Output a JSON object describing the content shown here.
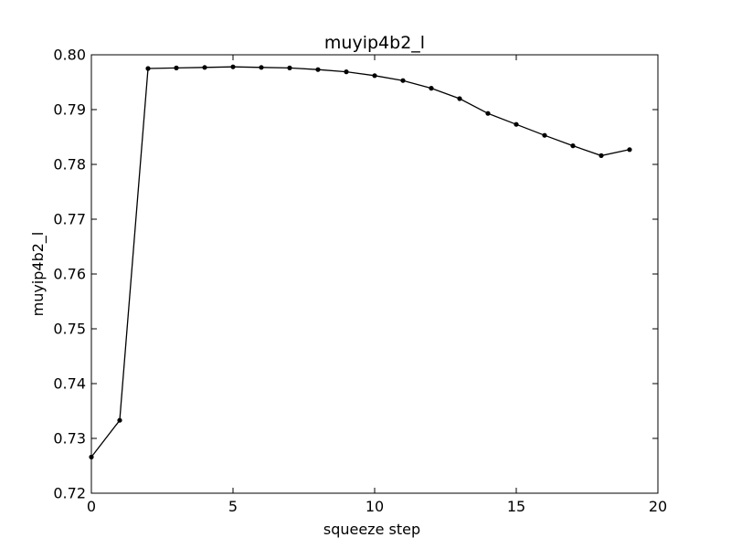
{
  "chart_data": {
    "type": "line",
    "title": "muyip4b2_l",
    "xlabel": "squeeze step",
    "ylabel": "muyip4b2_l",
    "xlim": [
      0,
      20
    ],
    "ylim": [
      0.72,
      0.8
    ],
    "xticks": [
      0,
      5,
      10,
      15,
      20
    ],
    "xtick_labels": [
      "0",
      "5",
      "10",
      "15",
      "20"
    ],
    "yticks": [
      0.72,
      0.73,
      0.74,
      0.75,
      0.76,
      0.77,
      0.78,
      0.79,
      0.8
    ],
    "ytick_labels": [
      "0.72",
      "0.73",
      "0.74",
      "0.75",
      "0.76",
      "0.77",
      "0.78",
      "0.79",
      "0.80"
    ],
    "grid": false,
    "legend": "none",
    "colors": {
      "line": "#000000",
      "marker": "#000000",
      "frame": "#000000",
      "background": "#ffffff"
    },
    "series": [
      {
        "x": [
          0,
          1,
          2,
          3,
          4,
          5,
          6,
          7,
          8,
          9,
          10,
          11,
          12,
          13,
          14,
          15,
          16,
          17,
          18,
          19
        ],
        "values": [
          0.7266,
          0.7333,
          0.7975,
          0.7976,
          0.7977,
          0.7978,
          0.7977,
          0.7976,
          0.7973,
          0.7969,
          0.7962,
          0.7953,
          0.7939,
          0.792,
          0.7893,
          0.7873,
          0.7853,
          0.7834,
          0.7816,
          0.7827
        ]
      }
    ]
  }
}
